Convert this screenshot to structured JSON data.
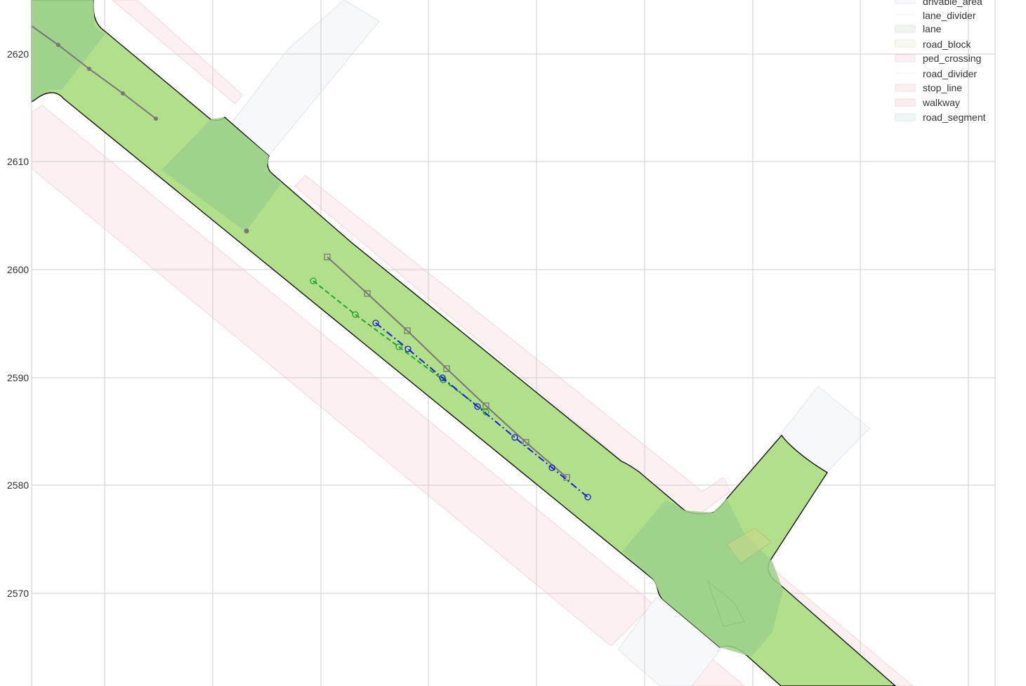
{
  "map": {
    "y_axis_ticks": [
      "2620",
      "2610",
      "2600",
      "2590",
      "2580",
      "2570"
    ],
    "legend": [
      {
        "label": "drivable_area",
        "color": "#cfd8e8"
      },
      {
        "label": "lane_divider",
        "color": "#e3e3e3"
      },
      {
        "label": "lane",
        "color": "#c7e3cf"
      },
      {
        "label": "road_block",
        "color": "#ecf3d9"
      },
      {
        "label": "ped_crossing",
        "color": "#eecfe0"
      },
      {
        "label": "road_divider",
        "color": "#e8e8e8"
      },
      {
        "label": "stop_line",
        "color": "#f7ddd7"
      },
      {
        "label": "walkway",
        "color": "#f6cccc"
      },
      {
        "label": "road_segment",
        "color": "#d3e9ec"
      }
    ],
    "colors": {
      "road_fill": "#b2df8a",
      "road_dark": "#9bd18b",
      "walkway": "#fdf0f0",
      "crossing": "#f7f8fc",
      "grid": "#cccccc",
      "trajectory_gray": "#777777",
      "trajectory_green": "#22a22a",
      "trajectory_blue": "#1a1ae6"
    }
  }
}
